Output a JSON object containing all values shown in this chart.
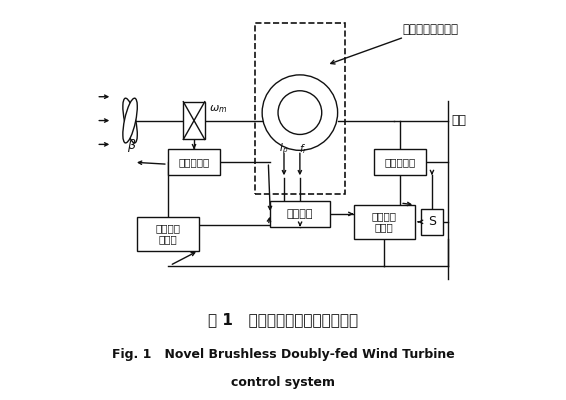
{
  "title_cn": "图 1   新型无刷双馈电机控制系统",
  "title_en1": "Fig. 1   Novel Brushless Doubly-fed Wind Turbine",
  "title_en2": "control system",
  "bg_color": "#ffffff",
  "line_color": "#111111",
  "label_wushuang": "无刷双馈电机系统",
  "label_diannwang": "电网",
  "label_zhuansu": "转速传感器",
  "label_biandian": "变频装置",
  "label_gonglv_sensor": "功率传感器",
  "label_maxpower": "最大功率\n跟踪器",
  "label_smooth": "平稳功率\n控制器",
  "label_S": "S",
  "label_omega": "$\\omega_m$",
  "label_beta": "$\\beta$",
  "label_Ip": "$I_p$",
  "label_fr": "$f_r$"
}
